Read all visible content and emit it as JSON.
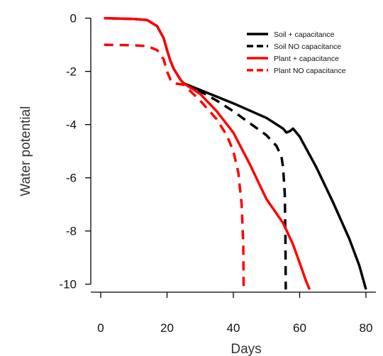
{
  "chart_data": {
    "type": "line",
    "title": "",
    "xlabel": "Days",
    "ylabel": "Water potential",
    "xlim": [
      -3,
      83
    ],
    "ylim": [
      -10.3,
      0.15
    ],
    "xticks": [
      0,
      20,
      40,
      60,
      80
    ],
    "yticks": [
      0,
      -2,
      -4,
      -6,
      -8,
      -10
    ],
    "grid": false,
    "legend_position": "top-right",
    "series": [
      {
        "name": "Soil + capacitance",
        "color": "#000000",
        "dash": "solid",
        "points": [
          [
            1,
            0
          ],
          [
            10,
            -0.03
          ],
          [
            14,
            -0.07
          ],
          [
            17,
            -0.3
          ],
          [
            19,
            -0.75
          ],
          [
            20,
            -1.2
          ],
          [
            21,
            -1.6
          ],
          [
            22,
            -1.9
          ],
          [
            23,
            -2.1
          ],
          [
            24,
            -2.3
          ],
          [
            25,
            -2.45
          ],
          [
            30,
            -2.7
          ],
          [
            40,
            -3.2
          ],
          [
            50,
            -3.75
          ],
          [
            55,
            -4.15
          ],
          [
            56,
            -4.3
          ],
          [
            57,
            -4.25
          ],
          [
            58,
            -4.15
          ],
          [
            60,
            -4.45
          ],
          [
            65,
            -5.6
          ],
          [
            70,
            -6.9
          ],
          [
            75,
            -8.3
          ],
          [
            78,
            -9.3
          ],
          [
            80,
            -10.2
          ]
        ]
      },
      {
        "name": "Soil NO capacitance",
        "color": "#000000",
        "dash": "dashed",
        "points": [
          [
            25,
            -2.45
          ],
          [
            30,
            -2.75
          ],
          [
            35,
            -3.1
          ],
          [
            40,
            -3.5
          ],
          [
            45,
            -3.95
          ],
          [
            50,
            -4.4
          ],
          [
            53,
            -4.8
          ],
          [
            54.5,
            -5.2
          ],
          [
            55,
            -5.6
          ],
          [
            55.5,
            -6.6
          ],
          [
            55.7,
            -8.2
          ],
          [
            55.8,
            -10.2
          ]
        ]
      },
      {
        "name": "Plant + capacitance",
        "color": "#ff0000",
        "dash": "solid",
        "points": [
          [
            1,
            0
          ],
          [
            10,
            -0.03
          ],
          [
            14,
            -0.07
          ],
          [
            17,
            -0.3
          ],
          [
            19,
            -0.75
          ],
          [
            20,
            -1.2
          ],
          [
            21,
            -1.6
          ],
          [
            22,
            -1.9
          ],
          [
            23,
            -2.1
          ],
          [
            24,
            -2.3
          ],
          [
            25,
            -2.45
          ],
          [
            30,
            -2.85
          ],
          [
            35,
            -3.5
          ],
          [
            40,
            -4.3
          ],
          [
            45,
            -5.5
          ],
          [
            50,
            -6.8
          ],
          [
            55,
            -7.7
          ],
          [
            58,
            -8.5
          ],
          [
            60,
            -9.2
          ],
          [
            62,
            -9.9
          ],
          [
            63,
            -10.2
          ]
        ]
      },
      {
        "name": "Plant NO capacitance",
        "color": "#ff0000",
        "dash": "dashed",
        "points": [
          [
            1,
            -1
          ],
          [
            10,
            -1.02
          ],
          [
            14,
            -1.05
          ],
          [
            17,
            -1.2
          ],
          [
            19,
            -1.55
          ],
          [
            20,
            -2.0
          ],
          [
            21,
            -2.3
          ],
          [
            22,
            -2.45
          ],
          [
            25,
            -2.5
          ],
          [
            30,
            -3.1
          ],
          [
            35,
            -3.8
          ],
          [
            38,
            -4.4
          ],
          [
            40,
            -5.0
          ],
          [
            41.5,
            -5.8
          ],
          [
            42.5,
            -7.0
          ],
          [
            43,
            -8.5
          ],
          [
            43.1,
            -10.2
          ]
        ]
      }
    ]
  }
}
